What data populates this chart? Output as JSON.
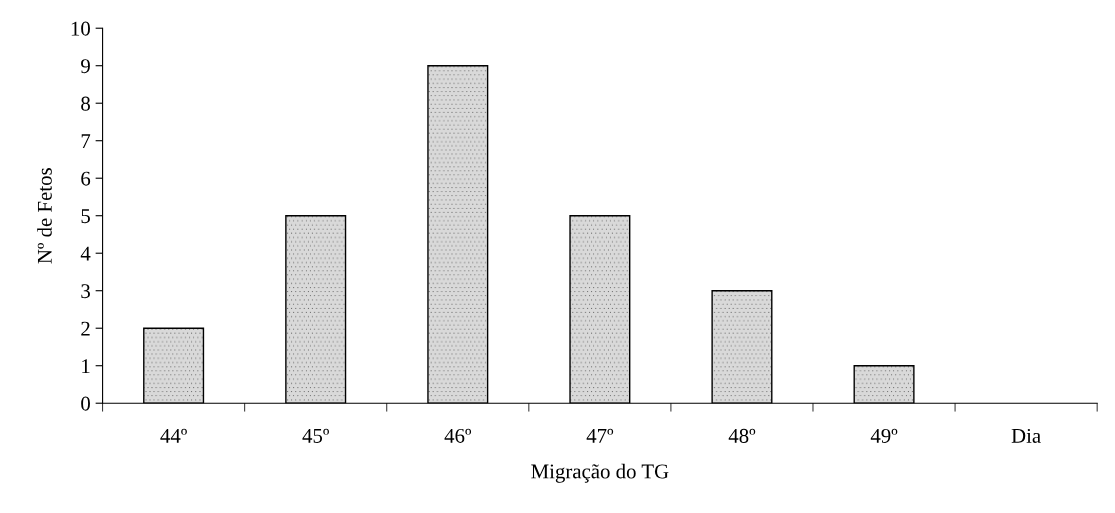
{
  "chart_data": {
    "type": "bar",
    "xlabel": "Migração do TG",
    "ylabel": "Nº de Fetos",
    "categories": [
      "44º",
      "45º",
      "46º",
      "47º",
      "48º",
      "49º",
      "Dia"
    ],
    "values": [
      2,
      5,
      9,
      5,
      3,
      1,
      null
    ],
    "color": "#d9d9d9",
    "ylim": [
      0,
      10
    ],
    "yticks": [
      0,
      1,
      2,
      3,
      4,
      5,
      6,
      7,
      8,
      9,
      10
    ],
    "grid": false,
    "legend": false
  }
}
